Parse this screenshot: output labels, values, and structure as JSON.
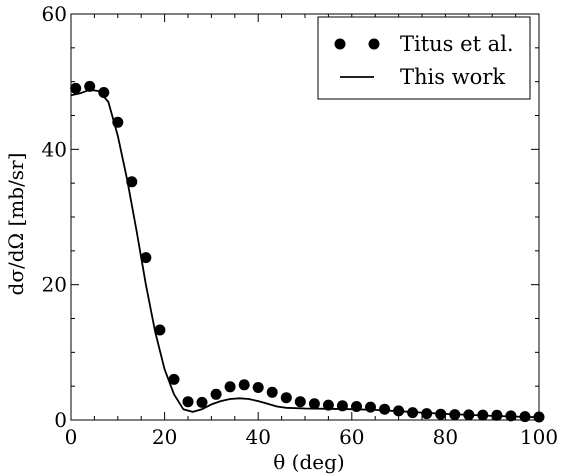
{
  "chart_data": {
    "type": "scatter",
    "xlabel": "θ (deg)",
    "ylabel": "dσ/dΩ [mb/sr]",
    "xlim": [
      0,
      100
    ],
    "ylim": [
      0,
      60
    ],
    "xticks": [
      0,
      20,
      40,
      60,
      80,
      100
    ],
    "yticks": [
      0,
      20,
      40,
      60
    ],
    "grid": false,
    "legend_position": "top-right",
    "series": [
      {
        "name": "Titus et al.",
        "kind": "points",
        "color": "#000000",
        "x": [
          1,
          4,
          7,
          10,
          13,
          16,
          19,
          22,
          25,
          28,
          31,
          34,
          37,
          40,
          43,
          46,
          49,
          52,
          55,
          58,
          61,
          64,
          67,
          70,
          73,
          76,
          79,
          82,
          85,
          88,
          91,
          94,
          97,
          100
        ],
        "y": [
          49,
          49.3,
          48.4,
          44,
          35.2,
          24,
          13.3,
          6,
          2.7,
          2.6,
          3.8,
          4.9,
          5.2,
          4.8,
          4.1,
          3.3,
          2.7,
          2.4,
          2.2,
          2.1,
          2.0,
          1.9,
          1.6,
          1.35,
          1.1,
          0.95,
          0.85,
          0.8,
          0.75,
          0.72,
          0.7,
          0.6,
          0.5,
          0.45
        ]
      },
      {
        "name": "This work",
        "kind": "line",
        "color": "#000000",
        "x": [
          0,
          2,
          4,
          6,
          8,
          10,
          12,
          14,
          16,
          18,
          20,
          22,
          24,
          26,
          28,
          30,
          32,
          34,
          36,
          38,
          40,
          42,
          44,
          46,
          50,
          55,
          60,
          65,
          70,
          75,
          80,
          85,
          90,
          95,
          100
        ],
        "y": [
          48,
          48.3,
          48.8,
          48.6,
          47,
          42,
          35.5,
          28,
          20,
          13,
          7.5,
          3.8,
          1.6,
          1.2,
          1.6,
          2.3,
          2.8,
          3.1,
          3.2,
          3.1,
          2.8,
          2.4,
          2.0,
          1.8,
          1.7,
          1.65,
          1.6,
          1.5,
          1.3,
          1.1,
          0.9,
          0.75,
          0.6,
          0.5,
          0.4
        ]
      }
    ]
  }
}
